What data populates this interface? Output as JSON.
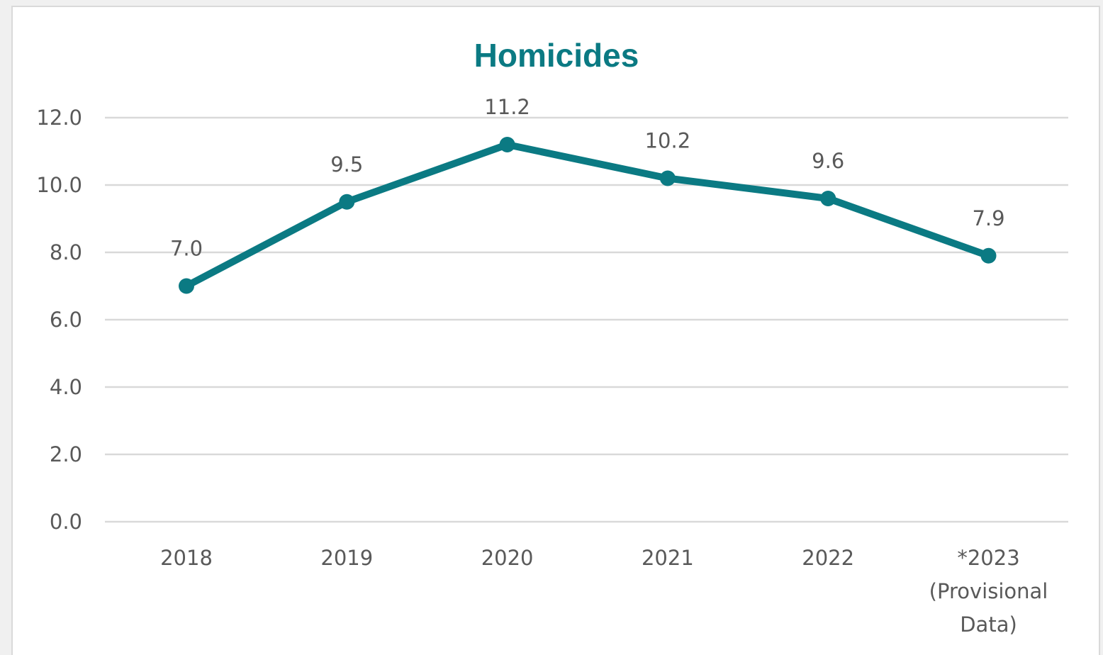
{
  "chart_data": {
    "type": "line",
    "title": "Homicides",
    "xlabel": "",
    "ylabel": "",
    "categories": [
      "2018",
      "2019",
      "2020",
      "2021",
      "2022",
      "*2023 (Provisional Data)"
    ],
    "category_lines": [
      [
        "2018"
      ],
      [
        "2019"
      ],
      [
        "2020"
      ],
      [
        "2021"
      ],
      [
        "2022"
      ],
      [
        "*2023",
        "(Provisional",
        "Data)"
      ]
    ],
    "series": [
      {
        "values": [
          7.0,
          9.5,
          11.2,
          10.2,
          9.6,
          7.9
        ]
      }
    ],
    "data_labels": [
      "7.0",
      "9.5",
      "11.2",
      "10.2",
      "9.6",
      "7.9"
    ],
    "y_ticks": [
      "0.0",
      "2.0",
      "4.0",
      "6.0",
      "8.0",
      "10.0",
      "12.0"
    ],
    "ylim": [
      0,
      12
    ],
    "grid": true,
    "legend": "none",
    "colors": {
      "series": "#0b7a83",
      "title": "#0b7a83",
      "grid": "#d9d9d9",
      "text": "#595959"
    }
  }
}
